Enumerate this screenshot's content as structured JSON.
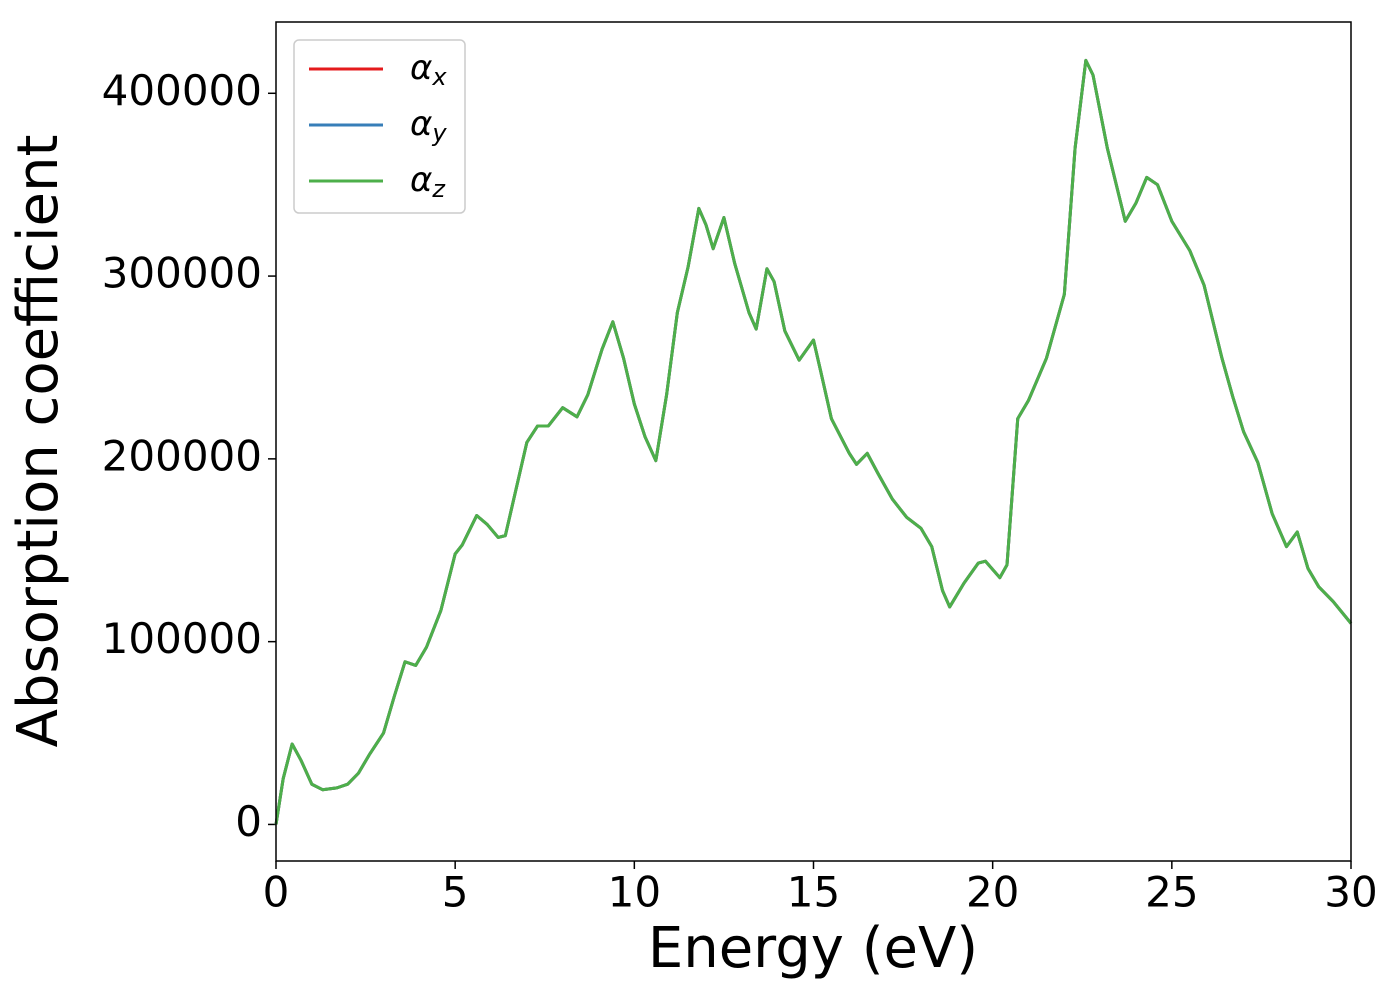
{
  "chart_data": {
    "type": "line",
    "xlabel": "Energy (eV)",
    "ylabel": "Absorption coefficient",
    "x": [
      0,
      0.2,
      0.45,
      0.7,
      1.0,
      1.3,
      1.7,
      2.0,
      2.3,
      2.6,
      3.0,
      3.3,
      3.6,
      3.9,
      4.2,
      4.6,
      5.0,
      5.2,
      5.6,
      5.9,
      6.2,
      6.4,
      6.6,
      7.0,
      7.3,
      7.6,
      8.0,
      8.4,
      8.7,
      9.1,
      9.4,
      9.7,
      10.0,
      10.3,
      10.6,
      10.9,
      11.2,
      11.5,
      11.8,
      12.0,
      12.2,
      12.5,
      12.8,
      13.2,
      13.4,
      13.7,
      13.9,
      14.2,
      14.6,
      15.0,
      15.2,
      15.5,
      16.0,
      16.2,
      16.5,
      16.8,
      17.2,
      17.6,
      18.0,
      18.3,
      18.6,
      18.8,
      19.2,
      19.6,
      19.8,
      20.2,
      20.4,
      20.7,
      21.0,
      21.5,
      22.0,
      22.3,
      22.6,
      22.8,
      23.2,
      23.7,
      24.0,
      24.3,
      24.6,
      25.0,
      25.5,
      25.9,
      26.4,
      26.7,
      27.0,
      27.4,
      27.8,
      28.2,
      28.5,
      28.8,
      29.1,
      29.5,
      30.0
    ],
    "series": [
      {
        "name": "αx",
        "color": "#e41a1c",
        "values": [
          0,
          25000,
          44000,
          35000,
          22000,
          19000,
          20000,
          22000,
          28000,
          38000,
          50000,
          70000,
          89000,
          87000,
          97000,
          117000,
          148000,
          153000,
          169000,
          164000,
          157000,
          158000,
          175000,
          209000,
          218000,
          218000,
          228000,
          223000,
          235000,
          260000,
          275000,
          255000,
          230000,
          212000,
          199000,
          235000,
          280000,
          305000,
          337000,
          328000,
          315000,
          332000,
          307000,
          280000,
          271000,
          304000,
          297000,
          270000,
          254000,
          265000,
          248000,
          222000,
          203000,
          197000,
          203000,
          192000,
          178000,
          168000,
          162000,
          152000,
          128000,
          119000,
          132000,
          143000,
          144000,
          135000,
          142000,
          222000,
          232000,
          255000,
          290000,
          370000,
          418000,
          410000,
          370000,
          330000,
          340000,
          354000,
          350000,
          330000,
          314000,
          295000,
          255000,
          234000,
          215000,
          198000,
          170000,
          152000,
          160000,
          140000,
          130000,
          122000,
          110000
        ]
      },
      {
        "name": "αy",
        "color": "#377eb8",
        "values": [
          0,
          25000,
          44000,
          35000,
          22000,
          19000,
          20000,
          22000,
          28000,
          38000,
          50000,
          70000,
          89000,
          87000,
          97000,
          117000,
          148000,
          153000,
          169000,
          164000,
          157000,
          158000,
          175000,
          209000,
          218000,
          218000,
          228000,
          223000,
          235000,
          260000,
          275000,
          255000,
          230000,
          212000,
          199000,
          235000,
          280000,
          305000,
          337000,
          328000,
          315000,
          332000,
          307000,
          280000,
          271000,
          304000,
          297000,
          270000,
          254000,
          265000,
          248000,
          222000,
          203000,
          197000,
          203000,
          192000,
          178000,
          168000,
          162000,
          152000,
          128000,
          119000,
          132000,
          143000,
          144000,
          135000,
          142000,
          222000,
          232000,
          255000,
          290000,
          370000,
          418000,
          410000,
          370000,
          330000,
          340000,
          354000,
          350000,
          330000,
          314000,
          295000,
          255000,
          234000,
          215000,
          198000,
          170000,
          152000,
          160000,
          140000,
          130000,
          122000,
          110000
        ]
      },
      {
        "name": "αz",
        "color": "#4daf4a",
        "values": [
          0,
          25000,
          44000,
          35000,
          22000,
          19000,
          20000,
          22000,
          28000,
          38000,
          50000,
          70000,
          89000,
          87000,
          97000,
          117000,
          148000,
          153000,
          169000,
          164000,
          157000,
          158000,
          175000,
          209000,
          218000,
          218000,
          228000,
          223000,
          235000,
          260000,
          275000,
          255000,
          230000,
          212000,
          199000,
          235000,
          280000,
          305000,
          337000,
          328000,
          315000,
          332000,
          307000,
          280000,
          271000,
          304000,
          297000,
          270000,
          254000,
          265000,
          248000,
          222000,
          203000,
          197000,
          203000,
          192000,
          178000,
          168000,
          162000,
          152000,
          128000,
          119000,
          132000,
          143000,
          144000,
          135000,
          142000,
          222000,
          232000,
          255000,
          290000,
          370000,
          418000,
          410000,
          370000,
          330000,
          340000,
          354000,
          350000,
          330000,
          314000,
          295000,
          255000,
          234000,
          215000,
          198000,
          170000,
          152000,
          160000,
          140000,
          130000,
          122000,
          110000
        ]
      }
    ],
    "xlim": [
      0,
      30
    ],
    "xticks": [
      0,
      5,
      10,
      15,
      20,
      25,
      30
    ],
    "ylim": [
      -20000,
      439000
    ],
    "yticks": [
      0,
      100000,
      200000,
      300000,
      400000
    ],
    "legend": "upper left"
  }
}
